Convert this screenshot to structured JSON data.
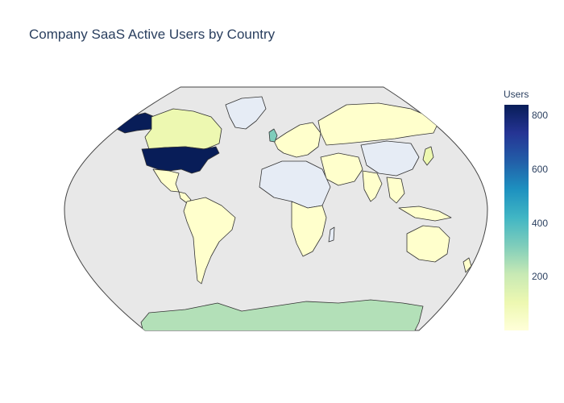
{
  "title": "Company SaaS Active Users by Country",
  "colorbar": {
    "title": "Users",
    "min": 0,
    "max": 840,
    "ticks": [
      {
        "value": 200,
        "label": "200"
      },
      {
        "value": 400,
        "label": "400"
      },
      {
        "value": 600,
        "label": "600"
      },
      {
        "value": 800,
        "label": "800"
      }
    ],
    "colorscale": [
      "#ffffd9",
      "#edf8b1",
      "#c7e9b4",
      "#7fcdbb",
      "#41b6c4",
      "#1d91c0",
      "#225ea8",
      "#253494",
      "#081d58"
    ]
  },
  "map": {
    "projection": "robinson",
    "ocean_color": "#e8e8e8",
    "no_data_color": "#e6ecf5",
    "land_border_color": "#444444"
  },
  "chart_data": {
    "type": "choropleth",
    "title": "Company SaaS Active Users by Country",
    "colorbar_title": "Users",
    "color_range": [
      0,
      840
    ],
    "regions": [
      {
        "name": "United States",
        "value": 830
      },
      {
        "name": "Canada",
        "value": 80
      },
      {
        "name": "United Kingdom",
        "value": 320
      },
      {
        "name": "Antarctica",
        "value": 250
      },
      {
        "name": "Mexico",
        "value": 30
      },
      {
        "name": "Brazil",
        "value": 20
      },
      {
        "name": "Russia",
        "value": 10
      },
      {
        "name": "Australia",
        "value": 20
      },
      {
        "name": "India",
        "value": 25
      },
      {
        "name": "Japan",
        "value": 90
      }
    ]
  }
}
